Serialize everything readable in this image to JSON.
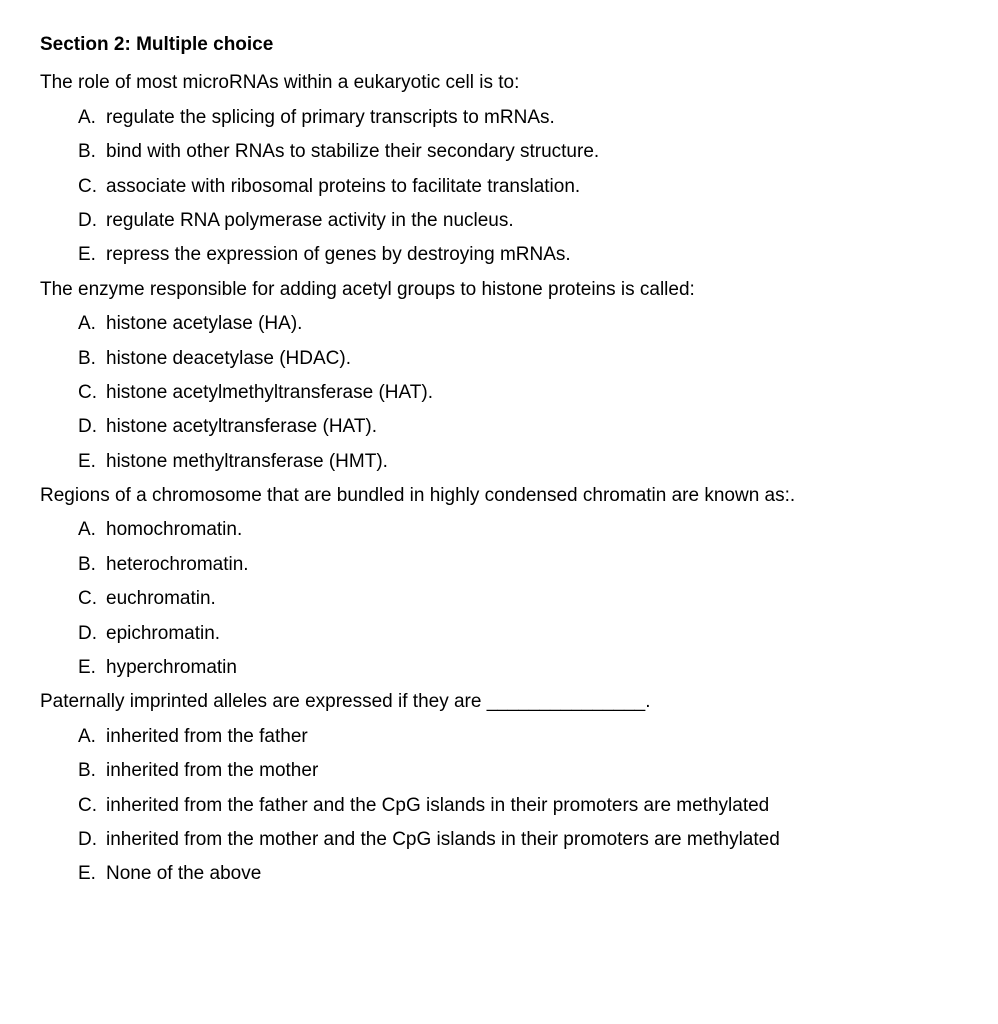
{
  "section": {
    "title": "Section 2:  Multiple choice"
  },
  "questions": [
    {
      "prompt": "The role of most microRNAs within a eukaryotic cell is to:",
      "options": [
        {
          "letter": "A.",
          "text": "regulate the splicing of primary transcripts to mRNAs."
        },
        {
          "letter": "B.",
          "text": "bind with other RNAs to stabilize their secondary structure."
        },
        {
          "letter": "C.",
          "text": "associate with ribosomal proteins to facilitate translation."
        },
        {
          "letter": "D.",
          "text": "regulate RNA polymerase activity in the nucleus."
        },
        {
          "letter": "E.",
          "text": "repress the expression of genes by destroying mRNAs."
        }
      ]
    },
    {
      "prompt": "The enzyme responsible for adding acetyl groups to histone proteins is called:",
      "options": [
        {
          "letter": "A.",
          "text": "histone acetylase (HA)."
        },
        {
          "letter": "B.",
          "text": "histone deacetylase (HDAC)."
        },
        {
          "letter": "C.",
          "text": "histone acetylmethyltransferase (HAT)."
        },
        {
          "letter": "D.",
          "text": "histone acetyltransferase (HAT)."
        },
        {
          "letter": "E.",
          "text": "histone methyltransferase (HMT)."
        }
      ]
    },
    {
      "prompt": "Regions of a chromosome that are bundled in highly condensed chromatin are known as:.",
      "options": [
        {
          "letter": "A.",
          "text": "homochromatin."
        },
        {
          "letter": "B.",
          "text": "heterochromatin."
        },
        {
          "letter": "C.",
          "text": "euchromatin."
        },
        {
          "letter": "D.",
          "text": "epichromatin."
        },
        {
          "letter": "E.",
          "text": "hyperchromatin"
        }
      ]
    },
    {
      "prompt": "Paternally imprinted alleles are expressed if they are _______________.",
      "options": [
        {
          "letter": "A.",
          "text": "inherited from the father"
        },
        {
          "letter": "B.",
          "text": "inherited from the mother"
        },
        {
          "letter": "C.",
          "text": "inherited from the father and the CpG islands in their promoters are methylated"
        },
        {
          "letter": "D.",
          "text": "inherited from the mother and the CpG islands in their promoters are methylated"
        },
        {
          "letter": "E.",
          "text": "None of the above"
        }
      ]
    }
  ]
}
